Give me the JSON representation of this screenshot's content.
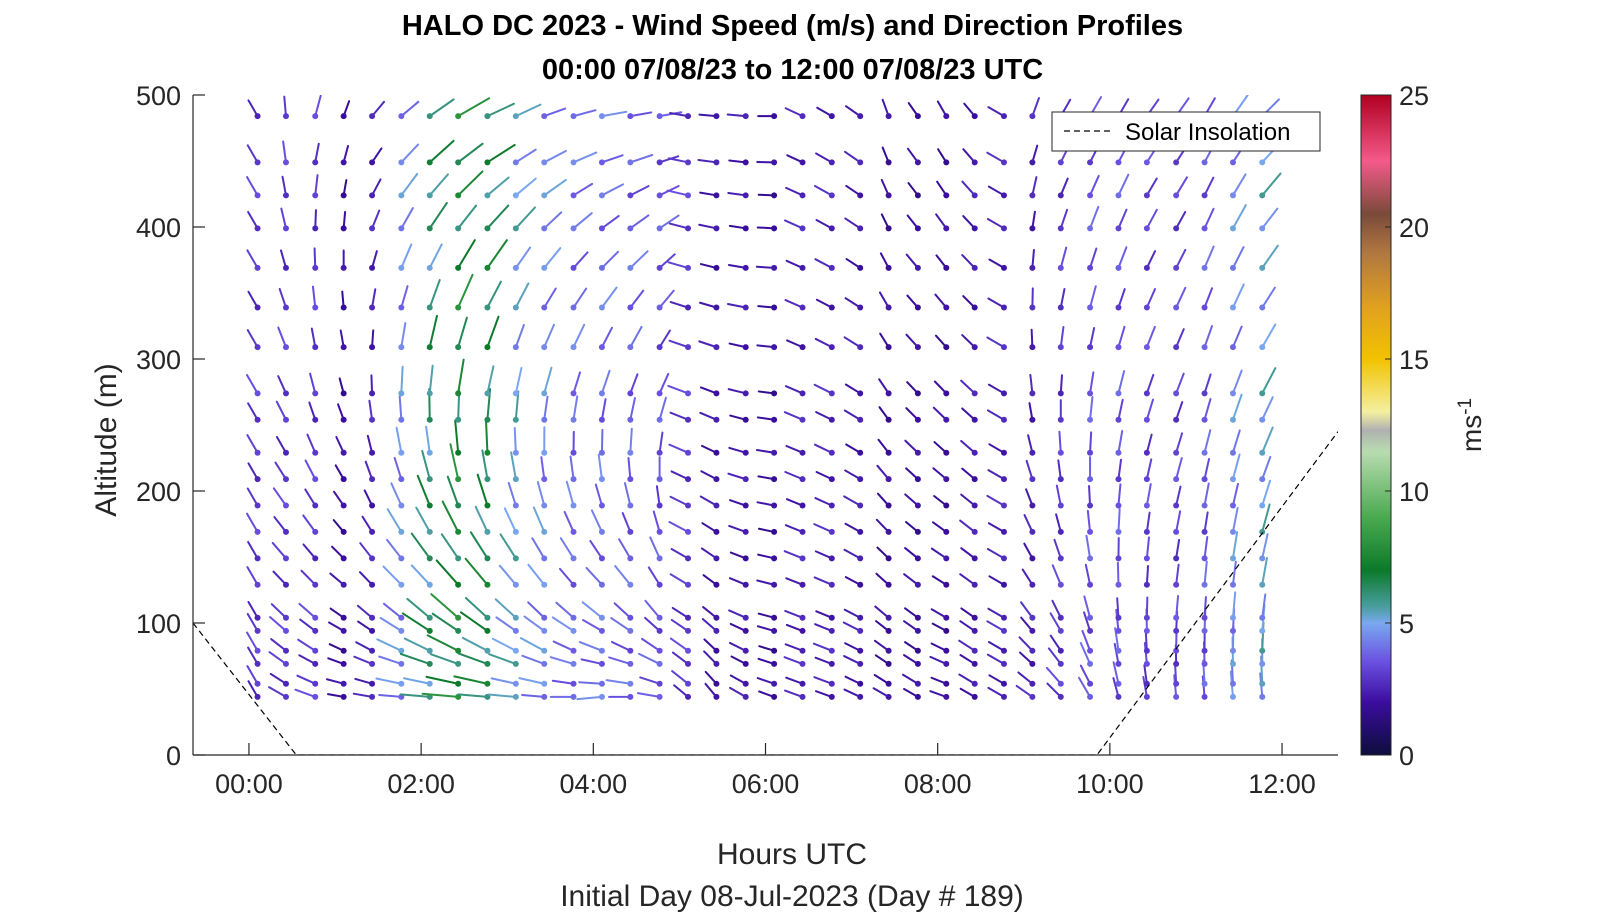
{
  "figure": {
    "title_line1": "HALO DC 2023 - Wind Speed (m/s) and Direction Profiles",
    "title_line2": "00:00 07/08/23 to 12:00 07/08/23  UTC",
    "xlabel": "Hours UTC",
    "ylabel": "Altitude (m)",
    "subnote": "Initial Day 08-Jul-2023 (Day # 189)"
  },
  "chart_data": {
    "type": "wind-barb profile (quiver)",
    "title": "HALO DC 2023 - Wind Speed (m/s) and Direction Profiles",
    "subtitle": "00:00 07/08/23 to 12:00 07/08/23  UTC",
    "xlabel": "Hours UTC",
    "ylabel": "Altitude (m)",
    "xlim_hours": [
      -0.65,
      12.65
    ],
    "ylim_m": [
      0,
      500
    ],
    "x_ticks": [
      {
        "value": 0,
        "label": "00:00"
      },
      {
        "value": 2,
        "label": "02:00"
      },
      {
        "value": 4,
        "label": "04:00"
      },
      {
        "value": 6,
        "label": "06:00"
      },
      {
        "value": 8,
        "label": "08:00"
      },
      {
        "value": 10,
        "label": "10:00"
      },
      {
        "value": 12,
        "label": "12:00"
      }
    ],
    "y_ticks": [
      0,
      100,
      200,
      300,
      400,
      500
    ],
    "colorbar": {
      "label": "ms",
      "label_superscript": "-1",
      "range": [
        0,
        25
      ],
      "ticks": [
        0,
        5,
        10,
        15,
        20,
        25
      ],
      "colormap_stops": [
        {
          "v": 0,
          "color": "#0d0d3d"
        },
        {
          "v": 2,
          "color": "#3b0d9e"
        },
        {
          "v": 3.5,
          "color": "#6a4fe0"
        },
        {
          "v": 5,
          "color": "#7aa8f0"
        },
        {
          "v": 5.6,
          "color": "#4a9ea0"
        },
        {
          "v": 7,
          "color": "#0b7a2a"
        },
        {
          "v": 9,
          "color": "#4aaa50"
        },
        {
          "v": 11.5,
          "color": "#b8dcb0"
        },
        {
          "v": 12.3,
          "color": "#b0b0b0"
        },
        {
          "v": 13,
          "color": "#f4f0a0"
        },
        {
          "v": 15,
          "color": "#f2c200"
        },
        {
          "v": 17,
          "color": "#e0a020"
        },
        {
          "v": 19,
          "color": "#b07840"
        },
        {
          "v": 20.5,
          "color": "#7a4a3a"
        },
        {
          "v": 22.5,
          "color": "#f45a8a"
        },
        {
          "v": 25,
          "color": "#b00020"
        }
      ]
    },
    "barb_grid": {
      "times_hours": [
        0.1,
        0.43,
        0.77,
        1.1,
        1.43,
        1.77,
        2.1,
        2.43,
        2.77,
        3.1,
        3.43,
        3.77,
        4.1,
        4.43,
        4.77,
        5.1,
        5.43,
        5.77,
        6.1,
        6.43,
        6.77,
        7.1,
        7.43,
        7.77,
        8.1,
        8.43,
        8.77,
        9.1,
        9.43,
        9.77,
        10.1,
        10.43,
        10.77,
        11.1,
        11.43,
        11.77
      ],
      "altitudes_m": [
        44,
        54,
        69,
        79,
        94,
        104,
        129,
        149,
        169,
        189,
        209,
        229,
        254,
        274,
        309,
        339,
        369,
        399,
        424,
        449,
        484
      ],
      "speed_ms_by_time": [
        3.0,
        3.0,
        3.0,
        2.0,
        2.5,
        4.5,
        6.0,
        7.0,
        6.5,
        5.0,
        4.5,
        4.0,
        4.0,
        3.8,
        3.5,
        3.0,
        2.2,
        2.2,
        2.0,
        2.5,
        2.5,
        2.3,
        2.0,
        2.0,
        2.0,
        2.3,
        2.5,
        2.5,
        3.0,
        3.5,
        3.5,
        3.2,
        3.2,
        3.6,
        4.5,
        5.0
      ],
      "low_dir_deg_by_time": [
        330,
        300,
        290,
        280,
        280,
        275,
        275,
        275,
        275,
        275,
        275,
        270,
        265,
        270,
        280,
        310,
        320,
        300,
        290,
        290,
        290,
        295,
        300,
        300,
        290,
        300,
        300,
        305,
        315,
        330,
        345,
        350,
        355,
        355,
        355,
        355
      ],
      "high_dir_deg_by_time": [
        330,
        355,
        15,
        20,
        40,
        50,
        55,
        60,
        65,
        65,
        70,
        75,
        80,
        80,
        80,
        280,
        275,
        275,
        270,
        295,
        300,
        305,
        340,
        325,
        330,
        320,
        300,
        20,
        30,
        30,
        30,
        35,
        35,
        30,
        35,
        45
      ]
    },
    "overlay_series": [
      {
        "name": "Solar Insolation",
        "style": "dashed",
        "x_hours": [
          -0.65,
          0.55,
          9.85,
          12.65
        ],
        "y_m": [
          100,
          0,
          0,
          245
        ]
      }
    ],
    "legend": {
      "position": "top-right",
      "entries": [
        "Solar Insolation"
      ]
    }
  }
}
